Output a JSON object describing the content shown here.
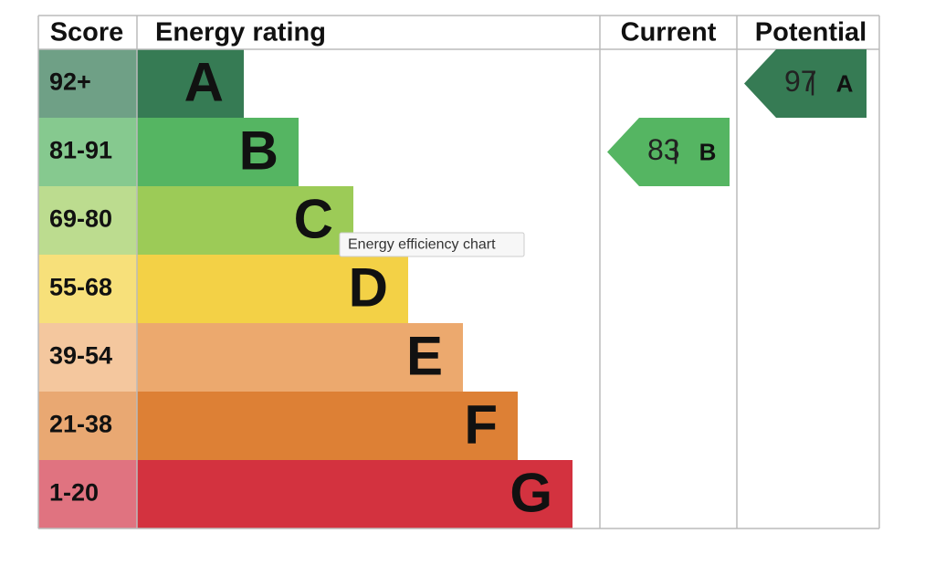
{
  "headers": {
    "score": "Score",
    "rating": "Energy rating",
    "current": "Current",
    "potential": "Potential"
  },
  "bands": [
    {
      "score": "92+",
      "letter": "A",
      "score_color": "#6fa086",
      "color": "#367b54"
    },
    {
      "score": "81-91",
      "letter": "B",
      "score_color": "#86c98f",
      "color": "#55b562"
    },
    {
      "score": "69-80",
      "letter": "C",
      "score_color": "#bcdc8f",
      "color": "#9ccb57"
    },
    {
      "score": "55-68",
      "letter": "D",
      "score_color": "#f7e07a",
      "color": "#f3d146"
    },
    {
      "score": "39-54",
      "letter": "E",
      "score_color": "#f4c79e",
      "color": "#eca96e"
    },
    {
      "score": "21-38",
      "letter": "F",
      "score_color": "#e9a872",
      "color": "#dd8035"
    },
    {
      "score": "1-20",
      "letter": "G",
      "score_color": "#e07380",
      "color": "#d3323f"
    }
  ],
  "current": {
    "value": 83,
    "letter": "B"
  },
  "potential": {
    "value": 97,
    "letter": "A"
  },
  "tooltip": "Energy efficiency chart"
}
